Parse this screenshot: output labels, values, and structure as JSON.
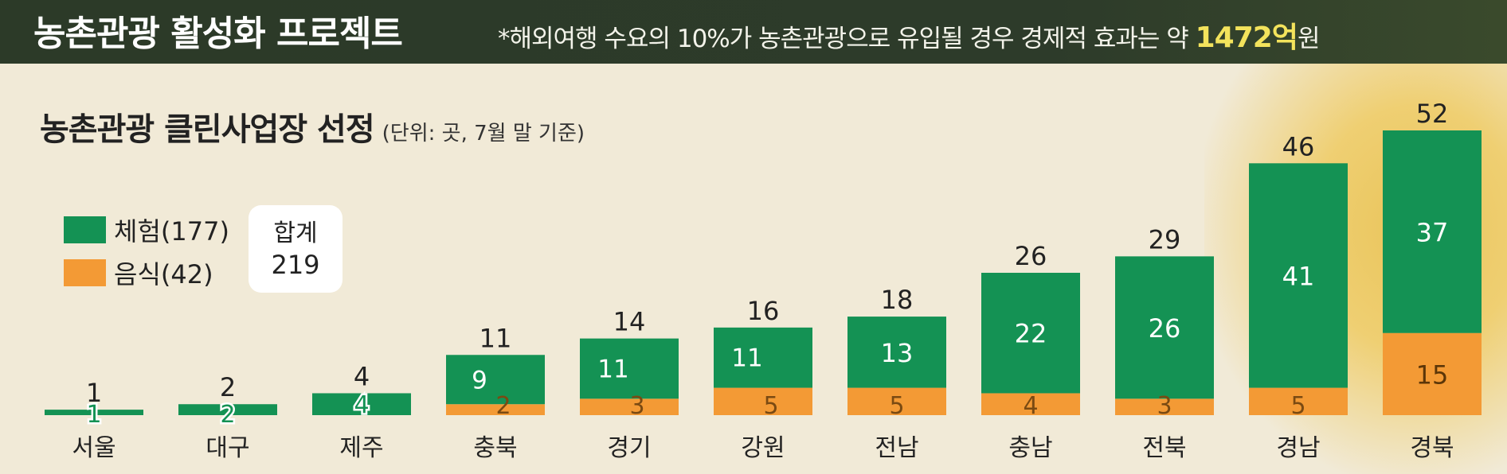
{
  "banner": {
    "title": "농촌관광 활성화 프로젝트",
    "note_prefix": "*해외여행 수요의 10%가 농촌관광으로 유입될 경우 경제적 효과는 약 ",
    "note_highlight": "1472억",
    "note_suffix": "원"
  },
  "subtitle": {
    "main": "농촌관광 클린사업장 선정",
    "unit": "(단위: 곳, 7월 말 기준)"
  },
  "legend": {
    "experience": "체험(177)",
    "food": "음식(42)"
  },
  "total": {
    "label": "합계",
    "value": "219"
  },
  "colors": {
    "experience": "#149254",
    "food": "#f39a35",
    "banner": "#2c3a28",
    "highlight": "#f3e35c"
  },
  "chart_data": {
    "type": "bar",
    "stacked": true,
    "title": "농촌관광 클린사업장 선정",
    "categories": [
      "서울",
      "대구",
      "제주",
      "충북",
      "경기",
      "강원",
      "전남",
      "충남",
      "전북",
      "경남",
      "경북"
    ],
    "series": [
      {
        "name": "체험(177)",
        "values": [
          1,
          2,
          4,
          9,
          11,
          11,
          13,
          22,
          26,
          41,
          37
        ]
      },
      {
        "name": "음식(42)",
        "values": [
          0,
          0,
          0,
          2,
          3,
          5,
          5,
          4,
          3,
          5,
          15
        ]
      }
    ],
    "totals": [
      1,
      2,
      4,
      11,
      14,
      16,
      18,
      26,
      29,
      46,
      52
    ],
    "ylim": [
      0,
      52
    ],
    "grid": false,
    "legend_position": "top-left"
  }
}
